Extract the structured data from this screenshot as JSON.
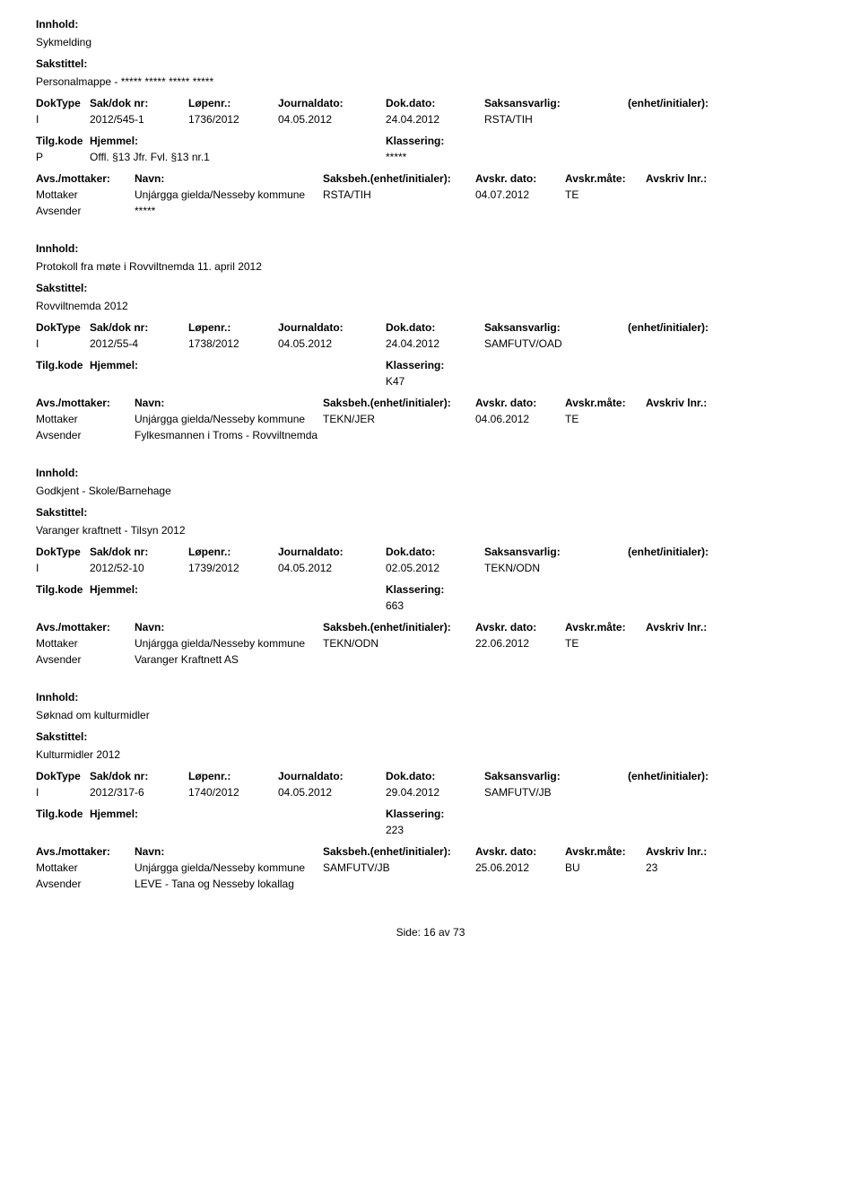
{
  "labels": {
    "innhold": "Innhold:",
    "sakstittel": "Sakstittel:",
    "doktype": "DokType",
    "sakdok": "Sak/dok nr:",
    "lopenr": "Løpenr.:",
    "jdato": "Journaldato:",
    "dokdato": "Dok.dato:",
    "saksansv": "Saksansvarlig:",
    "enhet": "(enhet/initialer):",
    "tilgkode": "Tilg.kode",
    "hjemmel": "Hjemmel:",
    "klassering": "Klassering:",
    "avsmottaker": "Avs./mottaker:",
    "navn": "Navn:",
    "saksbeh": "Saksbeh.(enhet/initialer):",
    "avskrdato": "Avskr. dato:",
    "avskrmate": "Avskr.måte:",
    "avskrlnr": "Avskriv lnr.:",
    "mottaker": "Mottaker",
    "avsender": "Avsender"
  },
  "entries": [
    {
      "innhold": "Sykmelding",
      "sakstittel": "Personalmappe - ***** ***** ***** *****",
      "doktype": "I",
      "sakdok": "2012/545-1",
      "lopenr": "1736/2012",
      "jdato": "04.05.2012",
      "dokdato": "24.04.2012",
      "saksansv": "RSTA/TIH",
      "tilgkode": "P",
      "hjemmel": "Offl. §13 Jfr. Fvl. §13 nr.1",
      "klassering": "*****",
      "parties": [
        {
          "role": "Mottaker",
          "navn": "Unjárgga gielda/Nesseby kommune",
          "saksbeh": "RSTA/TIH",
          "avskrdato": "04.07.2012",
          "avskrmate": "TE",
          "avskrlnr": ""
        },
        {
          "role": "Avsender",
          "navn": "*****",
          "saksbeh": "",
          "avskrdato": "",
          "avskrmate": "",
          "avskrlnr": ""
        }
      ]
    },
    {
      "innhold": "Protokoll fra møte i Rovviltnemda 11. april 2012",
      "sakstittel": "Rovviltnemda 2012",
      "doktype": "I",
      "sakdok": "2012/55-4",
      "lopenr": "1738/2012",
      "jdato": "04.05.2012",
      "dokdato": "24.04.2012",
      "saksansv": "SAMFUTV/OAD",
      "tilgkode": "",
      "hjemmel": "",
      "klassering": "K47",
      "parties": [
        {
          "role": "Mottaker",
          "navn": "Unjárgga gielda/Nesseby kommune",
          "saksbeh": "TEKN/JER",
          "avskrdato": "04.06.2012",
          "avskrmate": "TE",
          "avskrlnr": ""
        },
        {
          "role": "Avsender",
          "navn": "Fylkesmannen i Troms - Rovviltnemda",
          "saksbeh": "",
          "avskrdato": "",
          "avskrmate": "",
          "avskrlnr": ""
        }
      ]
    },
    {
      "innhold": "Godkjent - Skole/Barnehage",
      "sakstittel": "Varanger kraftnett - Tilsyn 2012",
      "doktype": "I",
      "sakdok": "2012/52-10",
      "lopenr": "1739/2012",
      "jdato": "04.05.2012",
      "dokdato": "02.05.2012",
      "saksansv": "TEKN/ODN",
      "tilgkode": "",
      "hjemmel": "",
      "klassering": "663",
      "parties": [
        {
          "role": "Mottaker",
          "navn": "Unjárgga gielda/Nesseby kommune",
          "saksbeh": "TEKN/ODN",
          "avskrdato": "22.06.2012",
          "avskrmate": "TE",
          "avskrlnr": ""
        },
        {
          "role": "Avsender",
          "navn": "Varanger Kraftnett AS",
          "saksbeh": "",
          "avskrdato": "",
          "avskrmate": "",
          "avskrlnr": ""
        }
      ]
    },
    {
      "innhold": "Søknad om kulturmidler",
      "sakstittel": "Kulturmidler 2012",
      "doktype": "I",
      "sakdok": "2012/317-6",
      "lopenr": "1740/2012",
      "jdato": "04.05.2012",
      "dokdato": "29.04.2012",
      "saksansv": "SAMFUTV/JB",
      "tilgkode": "",
      "hjemmel": "",
      "klassering": "223",
      "parties": [
        {
          "role": "Mottaker",
          "navn": "Unjárgga gielda/Nesseby kommune",
          "saksbeh": "SAMFUTV/JB",
          "avskrdato": "25.06.2012",
          "avskrmate": "BU",
          "avskrlnr": "23"
        },
        {
          "role": "Avsender",
          "navn": "LEVE - Tana og Nesseby lokallag",
          "saksbeh": "",
          "avskrdato": "",
          "avskrmate": "",
          "avskrlnr": ""
        }
      ]
    }
  ],
  "footer": {
    "side": "Side:",
    "page": "16",
    "av": "av",
    "total": "73"
  }
}
